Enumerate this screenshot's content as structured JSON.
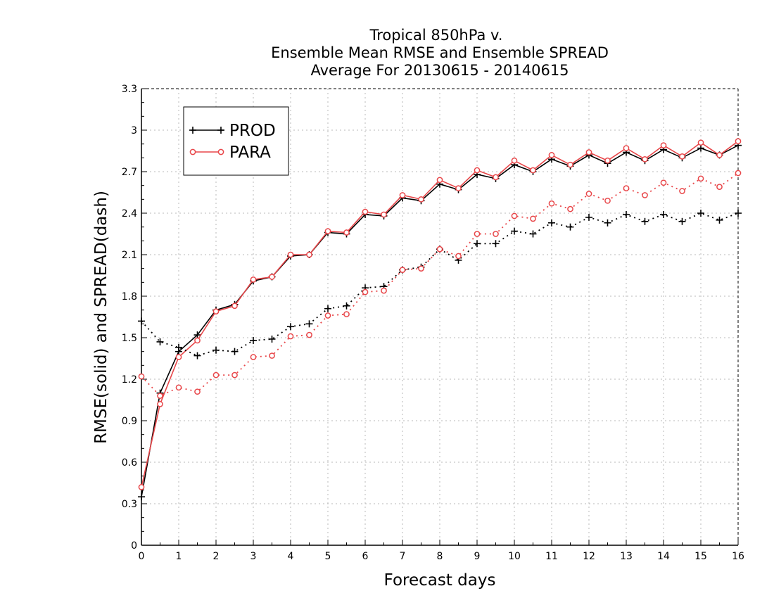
{
  "chart_data": {
    "type": "line",
    "title_lines": [
      "Tropical 850hPa v.",
      "Ensemble Mean RMSE and Ensemble SPREAD",
      "Average For 20130615 - 20140615"
    ],
    "xlabel": "Forecast days",
    "ylabel": "RMSE(solid) and SPREAD(dash)",
    "xlim": [
      0,
      16
    ],
    "ylim": [
      0,
      3.3
    ],
    "x_ticks": [
      "0",
      "1",
      "2",
      "3",
      "4",
      "5",
      "6",
      "7",
      "8",
      "9",
      "10",
      "11",
      "12",
      "13",
      "14",
      "15",
      "16"
    ],
    "y_ticks": [
      "0",
      "0.3",
      "0.6",
      "0.9",
      "1.2",
      "1.5",
      "1.8",
      "2.1",
      "2.4",
      "2.7",
      "3",
      "3.3"
    ],
    "x": [
      0,
      0.5,
      1,
      1.5,
      2,
      2.5,
      3,
      3.5,
      4,
      4.5,
      5,
      5.5,
      6,
      6.5,
      7,
      7.5,
      8,
      8.5,
      9,
      9.5,
      10,
      10.5,
      11,
      11.5,
      12,
      12.5,
      13,
      13.5,
      14,
      14.5,
      15,
      15.5,
      16
    ],
    "grid": true,
    "legend_position": "top-left",
    "series": [
      {
        "name": "PROD",
        "kind": "RMSE",
        "line_style": "solid",
        "marker": "plus",
        "color": "#000000",
        "values": [
          0.35,
          1.1,
          1.4,
          1.52,
          1.7,
          1.74,
          1.91,
          1.94,
          2.09,
          2.1,
          2.26,
          2.25,
          2.39,
          2.38,
          2.51,
          2.49,
          2.61,
          2.57,
          2.68,
          2.65,
          2.75,
          2.7,
          2.79,
          2.74,
          2.82,
          2.76,
          2.84,
          2.78,
          2.86,
          2.8,
          2.87,
          2.82,
          2.89
        ]
      },
      {
        "name": "PARA",
        "kind": "RMSE",
        "line_style": "solid",
        "marker": "circle",
        "color": "#e8474a",
        "values": [
          0.42,
          1.02,
          1.36,
          1.48,
          1.69,
          1.73,
          1.92,
          1.94,
          2.1,
          2.1,
          2.27,
          2.26,
          2.41,
          2.39,
          2.53,
          2.5,
          2.64,
          2.58,
          2.71,
          2.66,
          2.78,
          2.71,
          2.82,
          2.75,
          2.84,
          2.78,
          2.87,
          2.79,
          2.89,
          2.81,
          2.91,
          2.82,
          2.92
        ]
      },
      {
        "name": "PROD",
        "kind": "SPREAD",
        "line_style": "dotted",
        "marker": "plus",
        "color": "#000000",
        "values": [
          1.62,
          1.47,
          1.43,
          1.37,
          1.41,
          1.4,
          1.48,
          1.49,
          1.58,
          1.6,
          1.71,
          1.73,
          1.86,
          1.87,
          1.99,
          2.01,
          2.14,
          2.06,
          2.18,
          2.18,
          2.27,
          2.25,
          2.33,
          2.3,
          2.37,
          2.33,
          2.39,
          2.34,
          2.39,
          2.34,
          2.4,
          2.35,
          2.4
        ]
      },
      {
        "name": "PARA",
        "kind": "SPREAD",
        "line_style": "dotted",
        "marker": "circle",
        "color": "#e8474a",
        "values": [
          1.22,
          1.08,
          1.14,
          1.11,
          1.23,
          1.23,
          1.36,
          1.37,
          1.51,
          1.52,
          1.66,
          1.67,
          1.83,
          1.84,
          1.99,
          2.0,
          2.14,
          2.09,
          2.25,
          2.25,
          2.38,
          2.36,
          2.47,
          2.43,
          2.54,
          2.49,
          2.58,
          2.53,
          2.62,
          2.56,
          2.65,
          2.59,
          2.69
        ]
      }
    ],
    "legend": [
      {
        "label": "PROD",
        "marker": "plus",
        "color": "#000000"
      },
      {
        "label": "PARA",
        "marker": "circle",
        "color": "#e8474a"
      }
    ]
  }
}
